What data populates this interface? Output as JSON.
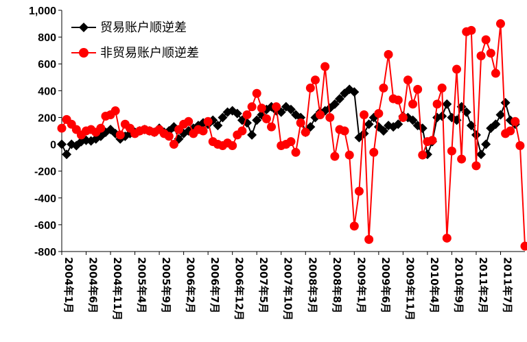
{
  "chart_data": {
    "type": "line",
    "title": "",
    "xlabel": "",
    "ylabel": "",
    "ylim": [
      -800,
      1000
    ],
    "yticks": [
      "1,000",
      "800",
      "600",
      "400",
      "200",
      "0",
      "-200",
      "-400",
      "-600",
      "-800"
    ],
    "ytick_values": [
      1000,
      800,
      600,
      400,
      200,
      0,
      -200,
      -400,
      -600,
      -800
    ],
    "xtick_labels": [
      "2004年1月",
      "2004年6月",
      "2004年11月",
      "2005年4月",
      "2005年9月",
      "2006年2月",
      "2006年7月",
      "2006年12月",
      "2007年5月",
      "2007年10月",
      "2008年3月",
      "2008年8月",
      "2009年1月",
      "2009年6月",
      "2009年11月",
      "2010年4月",
      "2010年9月",
      "2011年2月",
      "2011年7月"
    ],
    "xtick_index": [
      0,
      5,
      10,
      15,
      20,
      25,
      30,
      35,
      40,
      45,
      50,
      55,
      60,
      65,
      70,
      75,
      80,
      85,
      90
    ],
    "grid": false,
    "legend_position": "top-left",
    "series": [
      {
        "name": "贸易账户顺逆差",
        "color": "#000000",
        "marker": "diamond",
        "values": [
          0,
          -75,
          0,
          -10,
          20,
          30,
          25,
          40,
          60,
          90,
          110,
          80,
          40,
          60,
          80,
          90,
          100,
          110,
          100,
          90,
          120,
          90,
          100,
          130,
          40,
          80,
          100,
          120,
          140,
          160,
          150,
          180,
          140,
          200,
          240,
          250,
          230,
          180,
          160,
          70,
          180,
          220,
          260,
          280,
          250,
          240,
          280,
          260,
          220,
          200,
          90,
          130,
          200,
          240,
          250,
          270,
          300,
          340,
          380,
          410,
          390,
          50,
          80,
          150,
          200,
          130,
          100,
          140,
          130,
          150,
          210,
          200,
          180,
          140,
          120,
          -75,
          20,
          200,
          210,
          300,
          200,
          180,
          280,
          240,
          140,
          70,
          -75,
          0,
          120,
          150,
          220,
          310,
          180,
          150
        ]
      },
      {
        "name": "非贸易账户顺逆差",
        "color": "#ff0000",
        "marker": "circle",
        "values": [
          120,
          185,
          150,
          110,
          70,
          100,
          110,
          90,
          120,
          210,
          220,
          250,
          70,
          150,
          120,
          80,
          100,
          110,
          100,
          90,
          110,
          80,
          60,
          0,
          110,
          150,
          170,
          80,
          110,
          100,
          170,
          20,
          0,
          -10,
          10,
          -10,
          70,
          100,
          220,
          280,
          380,
          270,
          190,
          130,
          280,
          -10,
          0,
          20,
          -60,
          160,
          90,
          420,
          480,
          220,
          580,
          200,
          -90,
          110,
          100,
          -80,
          -610,
          -350,
          220,
          -710,
          -60,
          230,
          420,
          670,
          340,
          330,
          200,
          480,
          300,
          410,
          -80,
          20,
          30,
          300,
          420,
          -700,
          -50,
          560,
          -110,
          840,
          850,
          -160,
          660,
          780,
          680,
          530,
          900,
          80,
          100,
          170,
          -10,
          -760
        ]
      }
    ]
  }
}
